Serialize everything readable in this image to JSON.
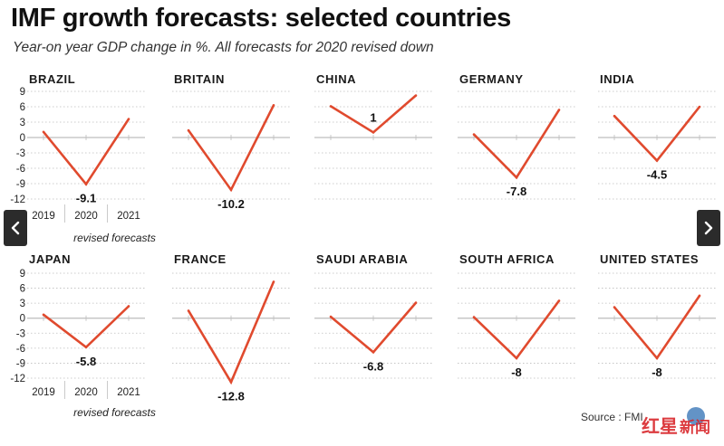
{
  "title": "IMF growth forecasts: selected countries",
  "subtitle": "Year-on year GDP change in %. All forecasts for 2020 revised down",
  "source": "Source : FMI",
  "watermark": "红星新闻",
  "nav": {
    "prev_icon": "chevron-left-icon",
    "next_icon": "chevron-right-icon"
  },
  "colors": {
    "line": "#e04a2e",
    "grid": "#bdbdbd",
    "text": "#1a1a1a",
    "nav": "#2b2b2b",
    "watermark": "#d9262b"
  },
  "chart_data": {
    "type": "line",
    "x": [
      "2019",
      "2020",
      "2021"
    ],
    "x_caption": "revised forecasts",
    "ylim": [
      -12,
      9
    ],
    "yticks": [
      9,
      6,
      3,
      0,
      -3,
      -6,
      -9,
      -12
    ],
    "panels": [
      {
        "country": "BRAZIL",
        "values": [
          1.1,
          -9.1,
          3.6
        ],
        "label": "-9.1"
      },
      {
        "country": "BRITAIN",
        "values": [
          1.4,
          -10.2,
          6.3
        ],
        "label": "-10.2"
      },
      {
        "country": "CHINA",
        "values": [
          6.1,
          1,
          8.2
        ],
        "label": "1"
      },
      {
        "country": "GERMANY",
        "values": [
          0.6,
          -7.8,
          5.4
        ],
        "label": "-7.8"
      },
      {
        "country": "INDIA",
        "values": [
          4.2,
          -4.5,
          6
        ],
        "label": "-4.5"
      },
      {
        "country": "JAPAN",
        "values": [
          0.7,
          -5.8,
          2.4
        ],
        "label": "-5.8"
      },
      {
        "country": "FRANCE",
        "values": [
          1.5,
          -12.8,
          7.3
        ],
        "label": "-12.8"
      },
      {
        "country": "SAUDI ARABIA",
        "values": [
          0.3,
          -6.8,
          3.1
        ],
        "label": "-6.8"
      },
      {
        "country": "SOUTH AFRICA",
        "values": [
          0.2,
          -8,
          3.5
        ],
        "label": "-8"
      },
      {
        "country": "UNITED STATES",
        "values": [
          2.2,
          -8,
          4.5
        ],
        "label": "-8"
      }
    ]
  }
}
